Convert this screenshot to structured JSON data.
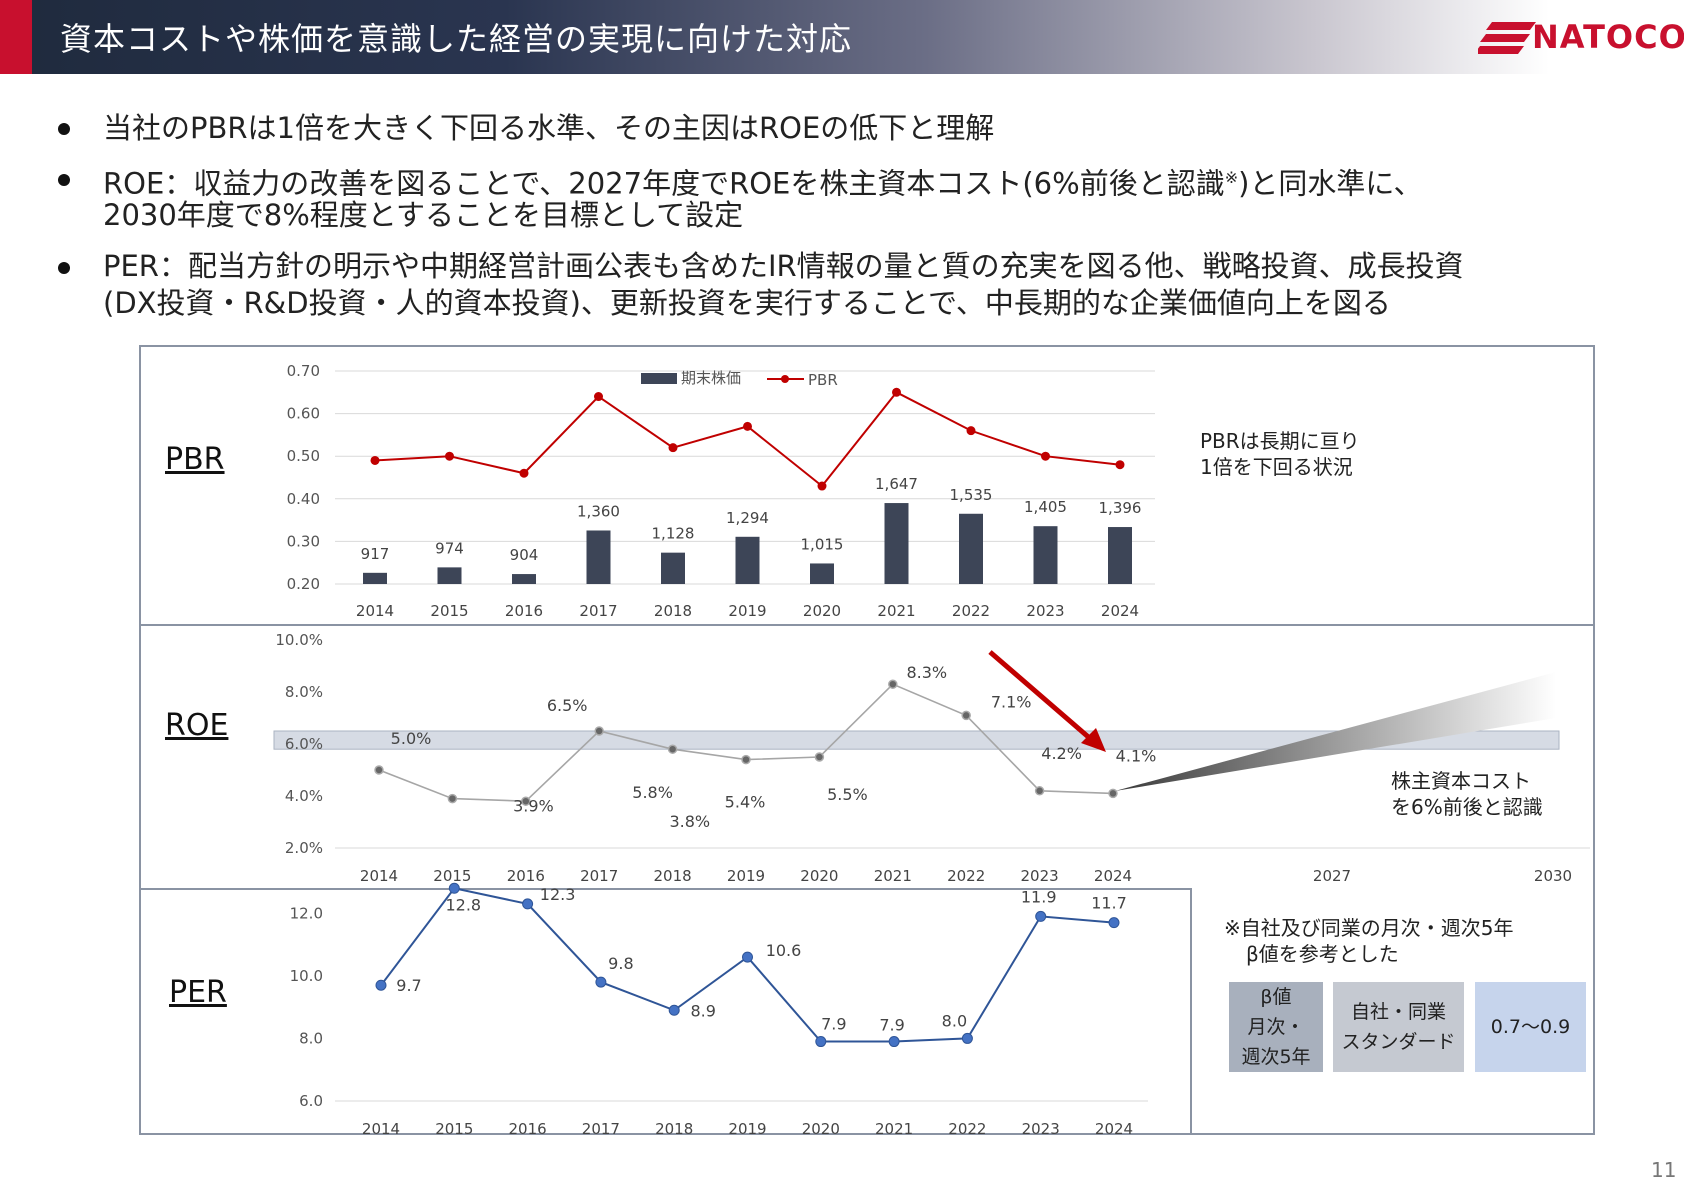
{
  "header": {
    "title": "資本コストや株価を意識した経営の実現に向けた対応",
    "logo_text": "NATOCO",
    "accent_color": "#c8102e"
  },
  "bullets": [
    {
      "lines": [
        "当社のPBRは1倍を大きく下回る水準、その主因はROEの低下と理解"
      ]
    },
    {
      "lines": [
        "ROE：収益力の改善を図ることで、2027年度でROEを株主資本コスト(6%前後と認識",
        "2030年度で8%程度とすることを目標として設定"
      ],
      "sup": "※",
      "tail": ")と同水準に、"
    },
    {
      "lines": [
        "PER：配当方針の明示や中期経営計画公表も含めたIR情報の量と質の充実を図る他、戦略投資、成長投資",
        "(DX投資・R&D投資・人的資本投資)、更新投資を実行することで、中長期的な企業価値向上を図る"
      ]
    }
  ],
  "labels": {
    "pbr": "PBR",
    "roe": "ROE",
    "per": "PER"
  },
  "notes": {
    "pbr_note": [
      "PBRは長期に亘り",
      "1倍を下回る状況"
    ],
    "roe_note": [
      "株主資本コスト",
      "を6%前後と認識"
    ],
    "beta_note": [
      "※自社及び同業の月次・週次5年",
      "β値を参考とした"
    ]
  },
  "beta_table": {
    "col1": [
      "β値",
      "月次・",
      "週次5年"
    ],
    "col2": [
      "自社・同業",
      "スタンダード"
    ],
    "col3": "0.7〜0.9",
    "colors": [
      "#a8b0bd",
      "#c5c9d1",
      "#c6d4ec"
    ]
  },
  "page_number": "11",
  "chart_data": [
    {
      "type": "bar",
      "categories": [
        "2014",
        "2015",
        "2016",
        "2017",
        "2018",
        "2019",
        "2020",
        "2021",
        "2022",
        "2023",
        "2024"
      ],
      "series": [
        {
          "name": "期末株価",
          "type": "bar",
          "values": [
            917,
            974,
            904,
            1360,
            1128,
            1294,
            1015,
            1647,
            1535,
            1405,
            1396
          ],
          "data_labels": [
            "917",
            "974",
            "904",
            "1,360",
            "1,128",
            "1,294",
            "1,015",
            "1,647",
            "1,535",
            "1,405",
            "1,396"
          ],
          "color": "#3d4557"
        },
        {
          "name": "PBR",
          "type": "line",
          "values": [
            0.49,
            0.5,
            0.46,
            0.64,
            0.52,
            0.57,
            0.43,
            0.65,
            0.56,
            0.5,
            0.48
          ],
          "color": "#c00000"
        }
      ],
      "ylim": [
        0.2,
        0.7
      ],
      "yticks": [
        "0.20",
        "0.30",
        "0.40",
        "0.50",
        "0.60",
        "0.70"
      ],
      "legend": "top-center",
      "grid": true
    },
    {
      "type": "line",
      "x": [
        "2014",
        "2015",
        "2016",
        "2017",
        "2018",
        "2019",
        "2020",
        "2021",
        "2022",
        "2023",
        "2024"
      ],
      "values": [
        5.0,
        3.9,
        3.8,
        6.5,
        5.8,
        5.4,
        5.5,
        8.3,
        7.1,
        4.2,
        4.1
      ],
      "data_labels": [
        "5.0%",
        "3.9%",
        "3.8%",
        "6.5%",
        "5.8%",
        "5.4%",
        "5.5%",
        "8.3%",
        "7.1%",
        "4.2%",
        "4.1%"
      ],
      "extra_x_ticks": [
        "2027",
        "2030"
      ],
      "ylim": [
        2.0,
        10.0
      ],
      "yticks": [
        "2.0%",
        "4.0%",
        "6.0%",
        "8.0%",
        "10.0%"
      ],
      "band": [
        5.8,
        6.5
      ],
      "color": "#a6a6a6",
      "grid": false
    },
    {
      "type": "line",
      "x": [
        "2014",
        "2015",
        "2016",
        "2017",
        "2018",
        "2019",
        "2020",
        "2021",
        "2022",
        "2023",
        "2024"
      ],
      "values": [
        9.7,
        12.8,
        12.3,
        9.8,
        8.9,
        10.6,
        7.9,
        7.9,
        8.0,
        11.9,
        11.7
      ],
      "data_labels": [
        "9.7",
        "12.8",
        "12.3",
        "9.8",
        "8.9",
        "10.6",
        "7.9",
        "7.9",
        "8.0",
        "11.9",
        "11.7"
      ],
      "ylim": [
        6.0,
        13.0
      ],
      "yticks": [
        "6.0",
        "8.0",
        "10.0",
        "12.0"
      ],
      "color": "#2f5597",
      "grid": false
    }
  ]
}
